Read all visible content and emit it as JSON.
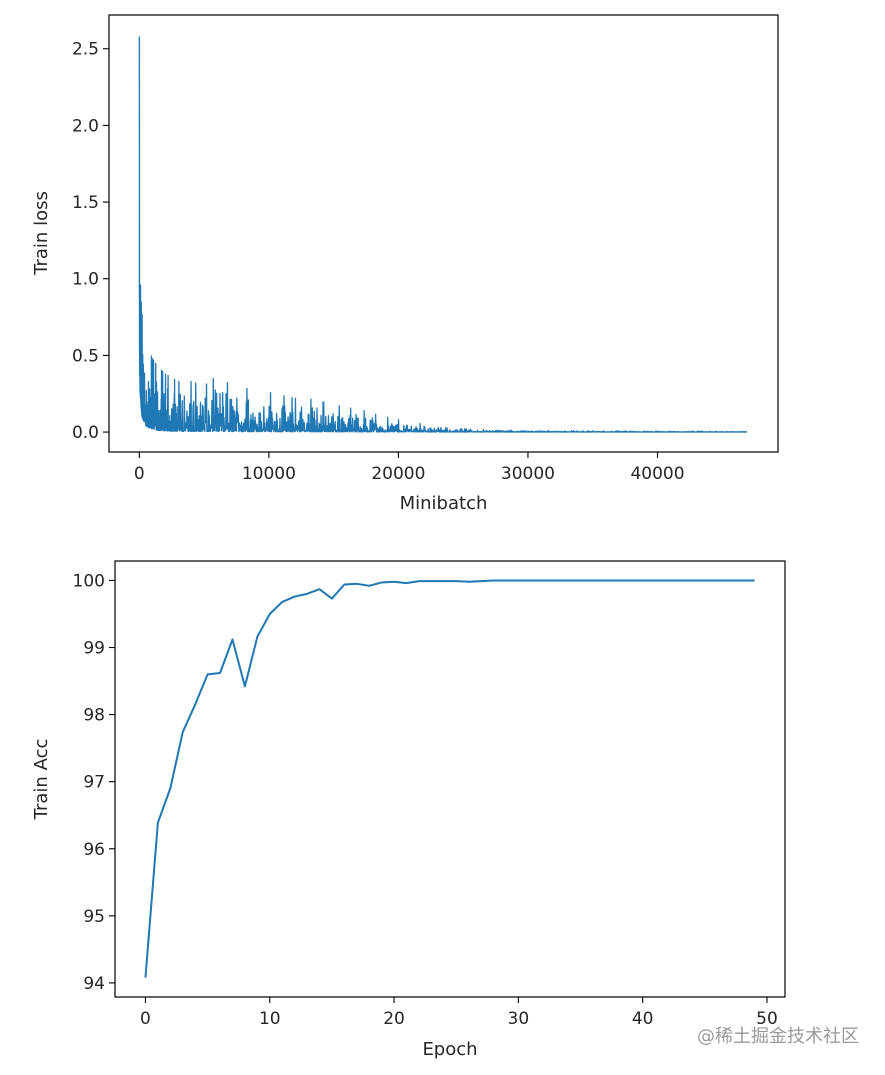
{
  "watermark": "@稀土掘金技术社区",
  "line_color": "#1f77b4",
  "chart_data": [
    {
      "type": "line",
      "title": "",
      "xlabel": "Minibatch",
      "ylabel": "Train loss",
      "xlim": [
        -2340,
        49300
      ],
      "ylim": [
        -0.13,
        2.72
      ],
      "xticks": [
        0,
        10000,
        20000,
        30000,
        40000
      ],
      "xtick_labels": [
        "0",
        "10000",
        "20000",
        "30000",
        "40000"
      ],
      "yticks": [
        0.0,
        0.5,
        1.0,
        1.5,
        2.0,
        2.5
      ],
      "ytick_labels": [
        "0.0",
        "0.5",
        "1.0",
        "1.5",
        "2.0",
        "2.5"
      ],
      "grid": false,
      "n_points": 46900,
      "envelope": {
        "x": [
          0,
          20,
          60,
          100,
          150,
          200,
          300,
          500,
          700,
          1000,
          1500,
          2000,
          3000,
          4000,
          5000,
          6000,
          7000,
          8000,
          9000,
          10000,
          11000,
          12000,
          13000,
          14000,
          15000,
          16000,
          17000,
          18000,
          19000,
          20000,
          21000,
          22000,
          23000,
          25000,
          27000,
          30000,
          35000,
          40000,
          46900
        ],
        "upper": [
          2.58,
          1.4,
          1.02,
          0.95,
          0.85,
          0.78,
          0.7,
          0.6,
          0.55,
          0.48,
          0.42,
          0.38,
          0.33,
          0.33,
          0.3,
          0.37,
          0.31,
          0.29,
          0.27,
          0.26,
          0.24,
          0.22,
          0.22,
          0.2,
          0.18,
          0.16,
          0.15,
          0.12,
          0.1,
          0.08,
          0.07,
          0.05,
          0.03,
          0.02,
          0.015,
          0.012,
          0.008,
          0.006,
          0.005
        ],
        "lower": [
          0.9,
          0.4,
          0.25,
          0.2,
          0.15,
          0.1,
          0.08,
          0.04,
          0.03,
          0.02,
          0.01,
          0.008,
          0.005,
          0.005,
          0.004,
          0.004,
          0.003,
          0.003,
          0.003,
          0.003,
          0.002,
          0.002,
          0.002,
          0.002,
          0.002,
          0.001,
          0.001,
          0.001,
          0.001,
          0.001,
          0.001,
          0.001,
          0.0005,
          0.0005,
          0.0003,
          0.0002,
          0.0001,
          0.0001,
          0.0001
        ]
      },
      "series": [
        {
          "name": "",
          "color": "#1f77b4"
        }
      ]
    },
    {
      "type": "line",
      "title": "",
      "xlabel": "Epoch",
      "ylabel": "Train Acc",
      "xlim": [
        -2.45,
        51.45
      ],
      "ylim": [
        93.79,
        100.29
      ],
      "xticks": [
        0,
        10,
        20,
        30,
        40,
        50
      ],
      "xtick_labels": [
        "0",
        "10",
        "20",
        "30",
        "40",
        "50"
      ],
      "yticks": [
        94,
        95,
        96,
        97,
        98,
        99,
        100
      ],
      "ytick_labels": [
        "94",
        "95",
        "96",
        "97",
        "98",
        "99",
        "100"
      ],
      "grid": false,
      "x": [
        0,
        1,
        2,
        3,
        4,
        5,
        6,
        7,
        8,
        9,
        10,
        11,
        12,
        13,
        14,
        15,
        16,
        17,
        18,
        19,
        20,
        21,
        22,
        23,
        24,
        25,
        26,
        27,
        28,
        29,
        30,
        31,
        32,
        33,
        34,
        35,
        36,
        37,
        38,
        39,
        40,
        41,
        42,
        43,
        44,
        45,
        46,
        47,
        48,
        49
      ],
      "series": [
        {
          "name": "",
          "color": "#1f77b4",
          "values": [
            94.08,
            96.39,
            96.9,
            97.74,
            98.15,
            98.6,
            98.62,
            99.12,
            98.42,
            99.16,
            99.5,
            99.68,
            99.76,
            99.8,
            99.87,
            99.73,
            99.94,
            99.95,
            99.92,
            99.97,
            99.98,
            99.96,
            99.99,
            99.99,
            99.99,
            99.99,
            99.98,
            99.99,
            100.0,
            100.0,
            100.0,
            100.0,
            100.0,
            100.0,
            100.0,
            100.0,
            100.0,
            100.0,
            100.0,
            100.0,
            100.0,
            100.0,
            100.0,
            100.0,
            100.0,
            100.0,
            100.0,
            100.0,
            100.0,
            100.0
          ]
        }
      ]
    }
  ]
}
